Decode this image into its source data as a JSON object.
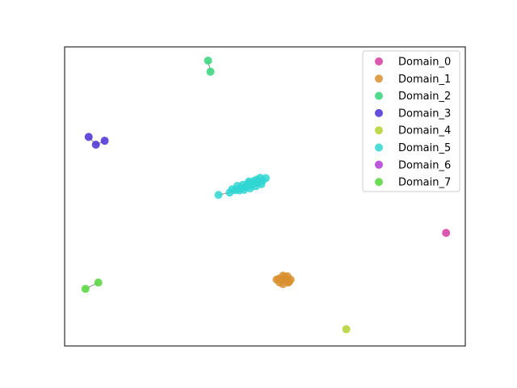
{
  "chart_data": {
    "type": "scatter",
    "title": "",
    "xlabel": "",
    "ylabel": "",
    "xlim": [
      0,
      100
    ],
    "ylim": [
      0,
      100
    ],
    "axis_ticks": false,
    "grid": false,
    "legend_position": "top-right",
    "series": [
      {
        "name": "Domain_0",
        "color": "#d63aa0",
        "points": [
          [
            95.2,
            37.8
          ]
        ],
        "edges": []
      },
      {
        "name": "Domain_1",
        "color": "#d98f2e",
        "points": [
          [
            53.5,
            22.5
          ],
          [
            54.5,
            23.5
          ],
          [
            55.6,
            23.3
          ],
          [
            56.4,
            22.2
          ],
          [
            55.8,
            21.2
          ],
          [
            54.5,
            20.7
          ],
          [
            53.6,
            21.3
          ],
          [
            54.8,
            22.3
          ],
          [
            55.2,
            22.0
          ],
          [
            52.9,
            22.2
          ],
          [
            56.0,
            21.5
          ],
          [
            55.0,
            23.0
          ]
        ],
        "edges": [
          [
            0,
            1
          ],
          [
            1,
            2
          ],
          [
            2,
            3
          ],
          [
            3,
            4
          ],
          [
            4,
            5
          ],
          [
            5,
            6
          ],
          [
            7,
            8
          ]
        ]
      },
      {
        "name": "Domain_2",
        "color": "#34d37a",
        "points": [
          [
            35.8,
            95.4
          ],
          [
            36.4,
            91.7
          ]
        ],
        "edges": [
          [
            0,
            1
          ]
        ]
      },
      {
        "name": "Domain_3",
        "color": "#4b2fd6",
        "points": [
          [
            6.0,
            69.9
          ],
          [
            7.8,
            67.3
          ],
          [
            10.0,
            68.6
          ]
        ],
        "edges": [
          [
            0,
            1
          ],
          [
            1,
            2
          ]
        ]
      },
      {
        "name": "Domain_4",
        "color": "#b3d22e",
        "points": [
          [
            70.3,
            5.6
          ]
        ],
        "edges": []
      },
      {
        "name": "Domain_5",
        "color": "#2fd6d2",
        "points": [
          [
            38.4,
            50.5
          ],
          [
            41.2,
            51.3
          ],
          [
            42.6,
            52.1
          ],
          [
            44.0,
            52.7
          ],
          [
            45.5,
            53.2
          ],
          [
            46.8,
            53.9
          ],
          [
            48.2,
            54.6
          ],
          [
            49.4,
            55.3
          ],
          [
            50.2,
            56.1
          ],
          [
            48.8,
            56.2
          ],
          [
            47.3,
            55.2
          ],
          [
            45.9,
            54.5
          ],
          [
            44.5,
            53.9
          ],
          [
            43.1,
            53.5
          ],
          [
            41.8,
            52.4
          ],
          [
            46.3,
            52.7
          ],
          [
            47.7,
            53.4
          ],
          [
            49.1,
            54.1
          ],
          [
            44.8,
            52.2
          ],
          [
            48.0,
            55.6
          ],
          [
            43.6,
            52.0
          ],
          [
            46.0,
            55.0
          ]
        ],
        "edges": [
          [
            0,
            1
          ],
          [
            1,
            2
          ],
          [
            2,
            3
          ],
          [
            3,
            4
          ],
          [
            4,
            5
          ],
          [
            5,
            6
          ],
          [
            6,
            7
          ],
          [
            7,
            8
          ],
          [
            9,
            10
          ],
          [
            10,
            11
          ],
          [
            11,
            12
          ],
          [
            12,
            13
          ],
          [
            15,
            16
          ],
          [
            16,
            17
          ]
        ]
      },
      {
        "name": "Domain_6",
        "color": "#b13ad6",
        "points": [],
        "edges": []
      },
      {
        "name": "Domain_7",
        "color": "#52d63a",
        "points": [
          [
            5.2,
            19.1
          ],
          [
            8.4,
            21.2
          ]
        ],
        "edges": [
          [
            0,
            1
          ]
        ]
      }
    ],
    "legend": {
      "entries": [
        "Domain_0",
        "Domain_1",
        "Domain_2",
        "Domain_3",
        "Domain_4",
        "Domain_5",
        "Domain_6",
        "Domain_7"
      ]
    }
  }
}
